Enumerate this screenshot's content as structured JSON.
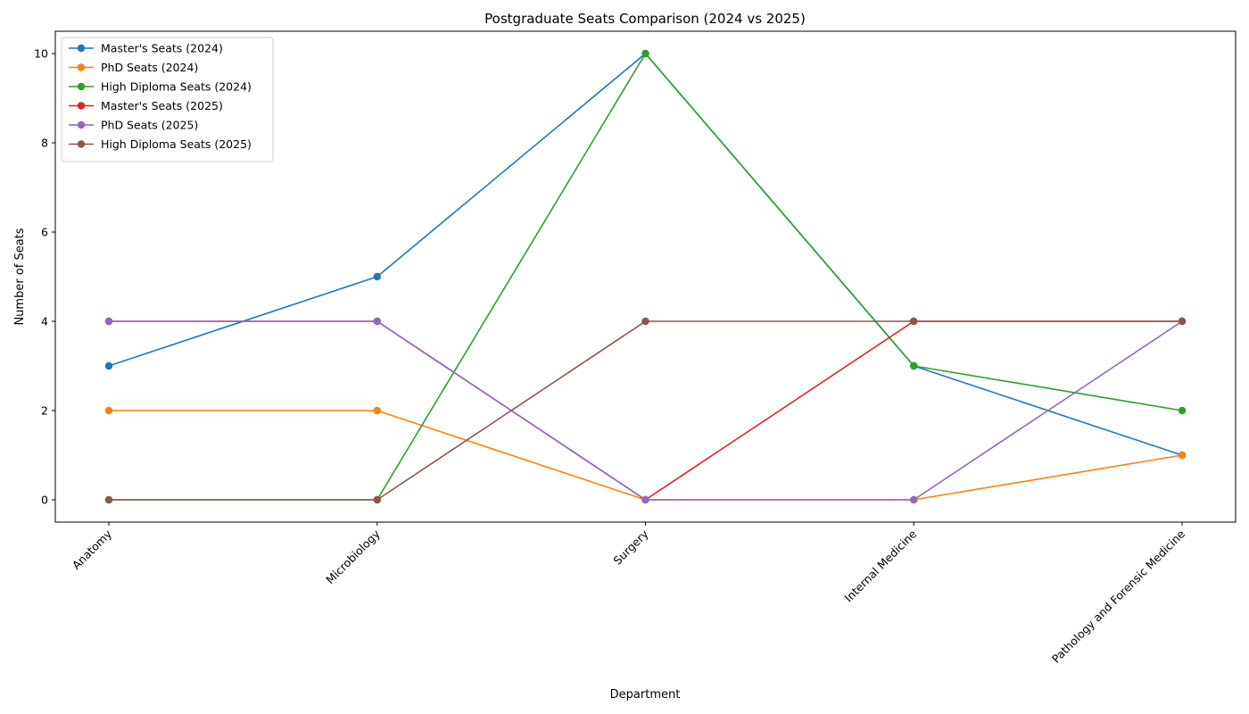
{
  "chart_data": {
    "type": "line",
    "title": "Postgraduate Seats Comparison (2024 vs 2025)",
    "xlabel": "Department",
    "ylabel": "Number of Seats",
    "categories": [
      "Anatomy",
      "Microbiology",
      "Surgery",
      "Internal Medicine",
      "Pathology and Forensic Medicine"
    ],
    "ylim": [
      -0.5,
      10.5
    ],
    "yticks": [
      0,
      2,
      4,
      6,
      8,
      10
    ],
    "grid": false,
    "legend_position": "top-left",
    "series": [
      {
        "name": "Master's Seats (2024)",
        "color": "#1f77b4",
        "values": [
          3,
          5,
          10,
          3,
          1
        ]
      },
      {
        "name": "PhD Seats (2024)",
        "color": "#ff7f0e",
        "values": [
          2,
          2,
          0,
          0,
          1
        ]
      },
      {
        "name": "High Diploma Seats (2024)",
        "color": "#2ca02c",
        "values": [
          0,
          0,
          10,
          3,
          2
        ]
      },
      {
        "name": "Master's Seats (2025)",
        "color": "#d62728",
        "values": [
          4,
          4,
          0,
          4,
          4
        ]
      },
      {
        "name": "PhD Seats (2025)",
        "color": "#9467bd",
        "values": [
          4,
          4,
          0,
          0,
          4
        ]
      },
      {
        "name": "High Diploma Seats (2025)",
        "color": "#8c564b",
        "values": [
          0,
          0,
          4,
          4,
          4
        ]
      }
    ]
  }
}
